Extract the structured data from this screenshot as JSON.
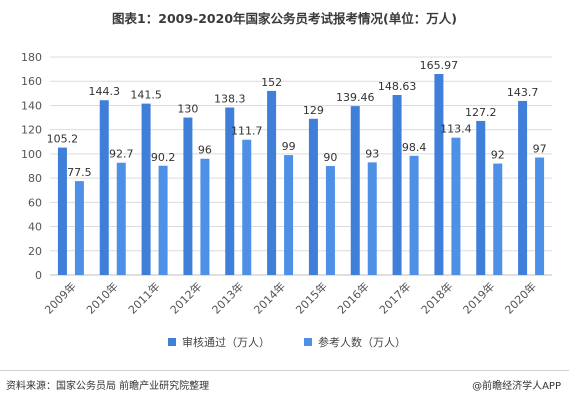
{
  "title": "图表1：2009-2020年国家公务员考试报考情况(单位：万人)",
  "source": "资料来源：国家公务员局 前瞻产业研究院整理",
  "brand": "@前瞻经济学人APP",
  "chart_data": {
    "type": "bar",
    "categories": [
      "2009年",
      "2010年",
      "2011年",
      "2012年",
      "2013年",
      "2014年",
      "2015年",
      "2016年",
      "2017年",
      "2018年",
      "2019年",
      "2020年"
    ],
    "series": [
      {
        "name": "审核通过（万人）",
        "color": "#3f7fd9",
        "values": [
          105.2,
          144.3,
          141.5,
          130,
          138.3,
          152,
          129,
          139.46,
          148.63,
          165.97,
          127.2,
          143.7
        ],
        "labels": [
          "105.2",
          "144.3",
          "141.5",
          "130",
          "138.3",
          "152",
          "129",
          "139.46",
          "148.63",
          "165.97",
          "127.2",
          "143.7"
        ]
      },
      {
        "name": "参考人数（万人）",
        "color": "#4d90e6",
        "values": [
          77.5,
          92.7,
          90.2,
          96,
          111.7,
          99,
          90,
          93,
          98.4,
          113.4,
          92,
          97
        ],
        "labels": [
          "77.5",
          "92.7",
          "90.2",
          "96",
          "111.7",
          "99",
          "90",
          "93",
          "98.4",
          "113.4",
          "92",
          "97"
        ]
      }
    ],
    "ylim": [
      0,
      180
    ],
    "yticks": [
      0,
      20,
      40,
      60,
      80,
      100,
      120,
      140,
      160,
      180
    ],
    "grid": true,
    "legend": "bottom"
  }
}
